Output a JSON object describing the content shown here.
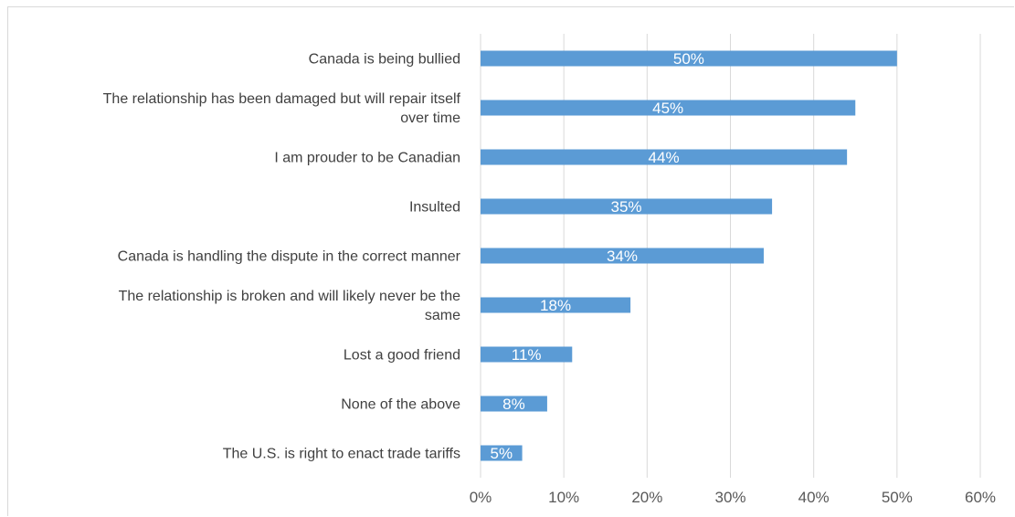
{
  "chart_data": {
    "type": "bar",
    "orientation": "horizontal",
    "categories": [
      [
        "Canada is being bullied"
      ],
      [
        "The relationship has been damaged but will repair itself",
        "over time"
      ],
      [
        "I am prouder to be Canadian"
      ],
      [
        "Insulted"
      ],
      [
        "Canada is handling the dispute in the correct manner"
      ],
      [
        "The relationship is broken and will likely never be the",
        "same"
      ],
      [
        "Lost a good friend"
      ],
      [
        "None of the above"
      ],
      [
        "The U.S. is right to enact trade tariffs"
      ]
    ],
    "values": [
      50,
      45,
      44,
      35,
      34,
      18,
      11,
      8,
      5
    ],
    "data_labels": [
      "50%",
      "45%",
      "44%",
      "35%",
      "34%",
      "18%",
      "11%",
      "8%",
      "5%"
    ],
    "xlim": [
      0,
      60
    ],
    "xticks": [
      "0%",
      "10%",
      "20%",
      "30%",
      "40%",
      "50%",
      "60%"
    ],
    "title": "",
    "xlabel": "",
    "ylabel": "",
    "grid": "vertical",
    "legend": "none",
    "bar_color": "#5b9bd5",
    "grid_color": "#d9d9d9"
  }
}
